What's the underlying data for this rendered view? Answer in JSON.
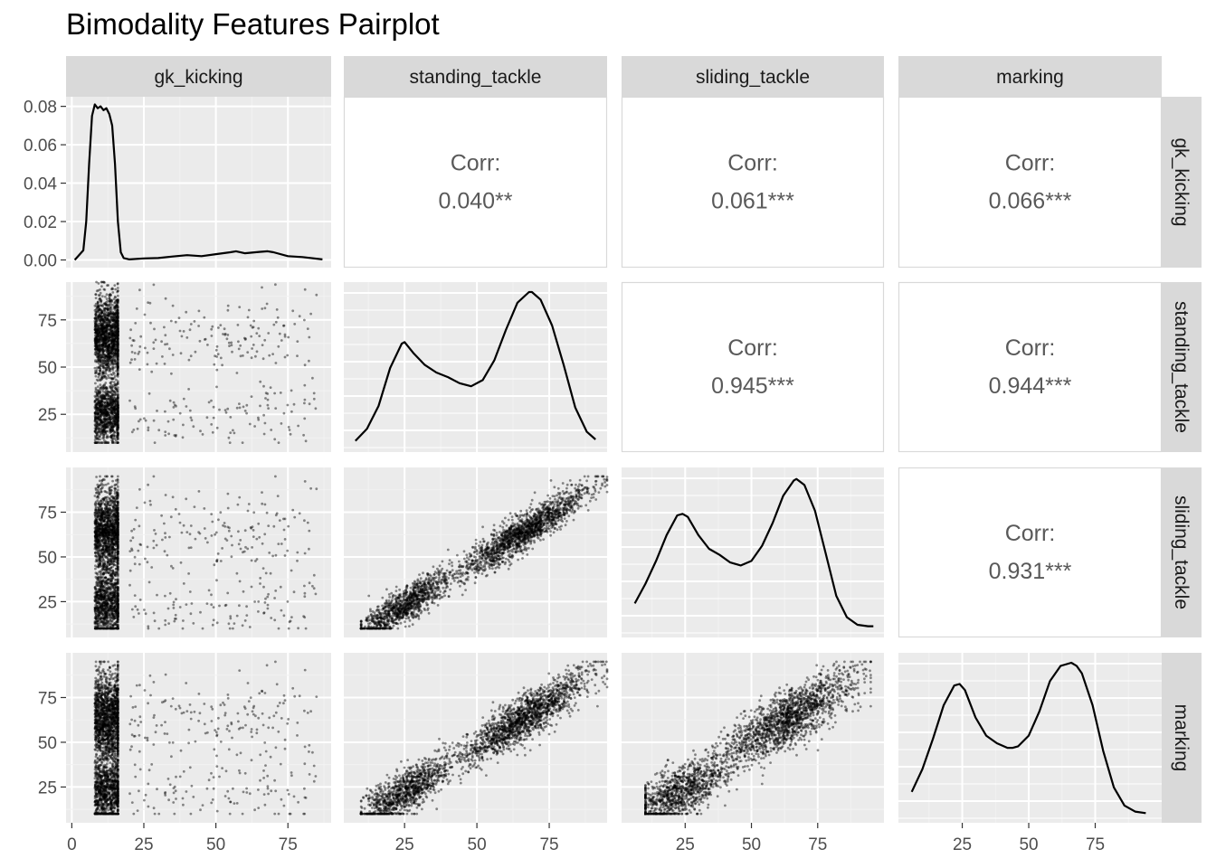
{
  "chart_data": {
    "type": "scatter",
    "title": "Bimodality Features Pairplot",
    "variables": [
      "gk_kicking",
      "standing_tackle",
      "sliding_tackle",
      "marking"
    ],
    "grid": true,
    "corr_label": "Corr:",
    "correlations": [
      {
        "row": "gk_kicking",
        "col": "standing_tackle",
        "label": "0.040**"
      },
      {
        "row": "gk_kicking",
        "col": "sliding_tackle",
        "label": "0.061***"
      },
      {
        "row": "gk_kicking",
        "col": "marking",
        "label": "0.066***"
      },
      {
        "row": "standing_tackle",
        "col": "sliding_tackle",
        "label": "0.945***"
      },
      {
        "row": "standing_tackle",
        "col": "marking",
        "label": "0.944***"
      },
      {
        "row": "sliding_tackle",
        "col": "marking",
        "label": "0.931***"
      }
    ],
    "x_ticks": {
      "gk_kicking": [
        0,
        25,
        50,
        75
      ],
      "standing_tackle": [
        25,
        50,
        75
      ],
      "sliding_tackle": [
        25,
        50,
        75
      ],
      "marking": [
        25,
        50,
        75
      ]
    },
    "y_ticks": {
      "density": [
        "0.08",
        "0.06",
        "0.04",
        "0.02",
        "0.00"
      ],
      "standing_tackle": [
        25,
        50,
        75
      ],
      "sliding_tackle": [
        25,
        50,
        75
      ],
      "marking": [
        25,
        50,
        75
      ]
    },
    "density_curves": {
      "gk_kicking": {
        "x": [
          1,
          4,
          5,
          6,
          7,
          8,
          9,
          10,
          11,
          12,
          13,
          14,
          15,
          16,
          17,
          18,
          20,
          25,
          30,
          35,
          40,
          45,
          50,
          55,
          57,
          60,
          65,
          68,
          70,
          75,
          80,
          87
        ],
        "y": [
          0.0,
          0.005,
          0.02,
          0.05,
          0.075,
          0.081,
          0.079,
          0.08,
          0.078,
          0.079,
          0.076,
          0.07,
          0.05,
          0.02,
          0.004,
          0.001,
          0.0003,
          0.0008,
          0.001,
          0.0018,
          0.0025,
          0.002,
          0.003,
          0.004,
          0.0045,
          0.0035,
          0.0042,
          0.0045,
          0.004,
          0.002,
          0.0015,
          0.0003
        ]
      },
      "standing_tackle": {
        "x": [
          8,
          12,
          16,
          20,
          24,
          25,
          28,
          32,
          36,
          40,
          44,
          48,
          52,
          56,
          60,
          64,
          68,
          69,
          72,
          76,
          80,
          84,
          88,
          91
        ],
        "y": [
          0.02,
          0.1,
          0.25,
          0.5,
          0.66,
          0.67,
          0.6,
          0.52,
          0.47,
          0.44,
          0.4,
          0.38,
          0.42,
          0.55,
          0.75,
          0.93,
          1.0,
          1.0,
          0.95,
          0.78,
          0.52,
          0.24,
          0.08,
          0.03
        ]
      },
      "sliding_tackle": {
        "x": [
          6,
          10,
          14,
          18,
          22,
          24,
          26,
          30,
          34,
          38,
          42,
          46,
          50,
          54,
          58,
          62,
          66,
          67,
          70,
          74,
          78,
          82,
          86,
          90,
          94,
          96
        ],
        "y": [
          0.17,
          0.3,
          0.45,
          0.62,
          0.75,
          0.76,
          0.74,
          0.62,
          0.53,
          0.49,
          0.44,
          0.42,
          0.45,
          0.55,
          0.7,
          0.88,
          0.98,
          0.99,
          0.95,
          0.78,
          0.5,
          0.22,
          0.08,
          0.03,
          0.02,
          0.02
        ]
      },
      "marking": {
        "x": [
          6,
          10,
          14,
          18,
          22,
          24,
          26,
          30,
          34,
          38,
          42,
          44,
          46,
          50,
          54,
          58,
          62,
          66,
          68,
          70,
          74,
          78,
          82,
          86,
          90,
          94
        ],
        "y": [
          0.15,
          0.3,
          0.5,
          0.72,
          0.85,
          0.86,
          0.82,
          0.64,
          0.52,
          0.47,
          0.44,
          0.44,
          0.45,
          0.52,
          0.68,
          0.88,
          0.98,
          1.0,
          0.98,
          0.93,
          0.72,
          0.42,
          0.18,
          0.06,
          0.02,
          0.01
        ]
      }
    }
  }
}
